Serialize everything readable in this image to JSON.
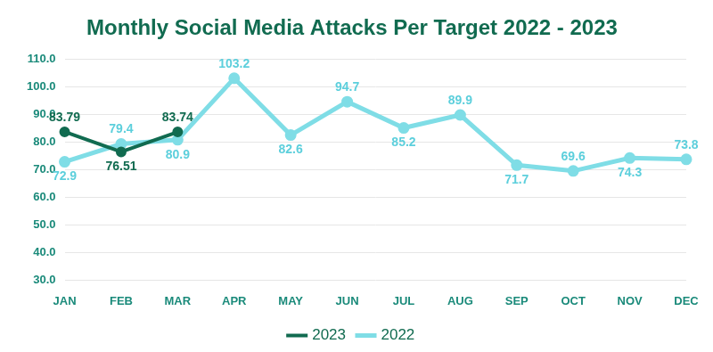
{
  "chart_data": {
    "type": "line",
    "title": "Monthly Social Media Attacks Per Target 2022 - 2023",
    "categories": [
      "JAN",
      "FEB",
      "MAR",
      "APR",
      "MAY",
      "JUN",
      "JUL",
      "AUG",
      "SEP",
      "OCT",
      "NOV",
      "DEC"
    ],
    "series": [
      {
        "name": "2022",
        "color": "#7fdde6",
        "marker": "circle",
        "values": [
          72.9,
          79.4,
          80.9,
          103.2,
          82.6,
          94.7,
          85.2,
          89.9,
          71.7,
          69.6,
          74.3,
          73.8
        ]
      },
      {
        "name": "2023",
        "color": "#116b50",
        "marker": "circle",
        "values": [
          83.79,
          76.51,
          83.74,
          null,
          null,
          null,
          null,
          null,
          null,
          null,
          null,
          null
        ]
      }
    ],
    "ylim": [
      30,
      110
    ],
    "yticks": [
      {
        "value": 30,
        "label": "30.0"
      },
      {
        "value": 40,
        "label": "40.0"
      },
      {
        "value": 50,
        "label": "50.0"
      },
      {
        "value": 60,
        "label": "60.0"
      },
      {
        "value": 70,
        "label": "70.0"
      },
      {
        "value": 80,
        "label": "80.0"
      },
      {
        "value": 90,
        "label": "90.0"
      },
      {
        "value": 100,
        "label": "100.0"
      },
      {
        "value": 110,
        "label": "110.0"
      }
    ],
    "grid": true,
    "legend": "bottom",
    "data_labels": true
  }
}
